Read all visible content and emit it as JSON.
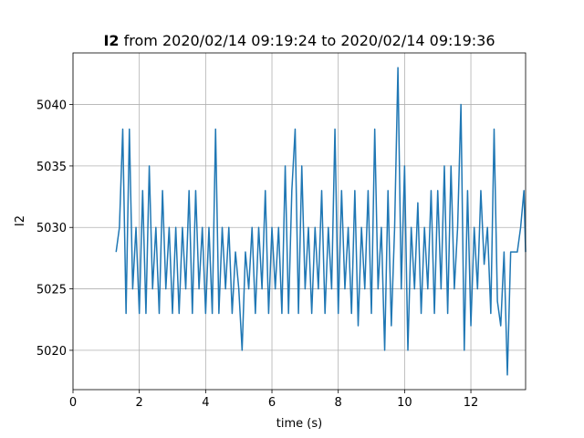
{
  "chart_data": {
    "type": "line",
    "title_bold": "I2",
    "title": "from 2020/02/14 09:19:24 to 2020/02/14 09:19:36",
    "x_label": "time (s)",
    "y_label": "I2",
    "color": "#1f77b4",
    "grid": true,
    "xlim": [
      0,
      13.65
    ],
    "ylim": [
      5016.8,
      5044.2
    ],
    "xticks": [
      0,
      2,
      4,
      6,
      8,
      10,
      12
    ],
    "yticks": [
      5020,
      5025,
      5030,
      5035,
      5040
    ],
    "x": [
      1.3,
      1.4,
      1.5,
      1.6,
      1.7,
      1.8,
      1.9,
      2.0,
      2.1,
      2.2,
      2.3,
      2.4,
      2.5,
      2.6,
      2.7,
      2.8,
      2.9,
      3.0,
      3.1,
      3.2,
      3.3,
      3.4,
      3.5,
      3.6,
      3.7,
      3.8,
      3.9,
      4.0,
      4.1,
      4.2,
      4.3,
      4.4,
      4.5,
      4.6,
      4.7,
      4.8,
      4.9,
      5.0,
      5.1,
      5.2,
      5.3,
      5.4,
      5.5,
      5.6,
      5.7,
      5.8,
      5.9,
      6.0,
      6.1,
      6.2,
      6.3,
      6.4,
      6.5,
      6.6,
      6.7,
      6.8,
      6.9,
      7.0,
      7.1,
      7.2,
      7.3,
      7.4,
      7.5,
      7.6,
      7.7,
      7.8,
      7.9,
      8.0,
      8.1,
      8.2,
      8.3,
      8.4,
      8.5,
      8.6,
      8.7,
      8.8,
      8.9,
      9.0,
      9.1,
      9.2,
      9.3,
      9.4,
      9.5,
      9.6,
      9.7,
      9.8,
      9.9,
      10.0,
      10.1,
      10.2,
      10.3,
      10.4,
      10.5,
      10.6,
      10.7,
      10.8,
      10.9,
      11.0,
      11.1,
      11.2,
      11.3,
      11.4,
      11.5,
      11.6,
      11.7,
      11.8,
      11.9,
      12.0,
      12.1,
      12.2,
      12.3,
      12.4,
      12.5,
      12.6,
      12.7,
      12.8,
      12.9,
      13.0,
      13.1,
      13.2,
      13.3,
      13.4,
      13.5,
      13.6,
      13.65
    ],
    "values": [
      5028,
      5030,
      5038,
      5023,
      5038,
      5025,
      5030,
      5023,
      5033,
      5023,
      5035,
      5025,
      5030,
      5023,
      5033,
      5025,
      5030,
      5023,
      5030,
      5023,
      5030,
      5025,
      5033,
      5023,
      5033,
      5025,
      5030,
      5023,
      5030,
      5023,
      5038,
      5023,
      5030,
      5025,
      5030,
      5023,
      5028,
      5025,
      5020,
      5028,
      5025,
      5030,
      5023,
      5030,
      5025,
      5033,
      5023,
      5030,
      5025,
      5030,
      5023,
      5035,
      5023,
      5033,
      5038,
      5023,
      5035,
      5025,
      5030,
      5023,
      5030,
      5025,
      5033,
      5023,
      5030,
      5025,
      5038,
      5023,
      5033,
      5025,
      5030,
      5023,
      5033,
      5022,
      5030,
      5025,
      5033,
      5023,
      5038,
      5025,
      5030,
      5020,
      5033,
      5022,
      5030,
      5043,
      5025,
      5035,
      5020,
      5030,
      5025,
      5032,
      5023,
      5030,
      5025,
      5033,
      5023,
      5033,
      5025,
      5035,
      5023,
      5035,
      5025,
      5030,
      5040,
      5020,
      5033,
      5022,
      5030,
      5025,
      5033,
      5027,
      5030,
      5023,
      5038,
      5024,
      5022,
      5028,
      5018,
      5028,
      5028,
      5028,
      5030,
      5033,
      5028
    ]
  }
}
